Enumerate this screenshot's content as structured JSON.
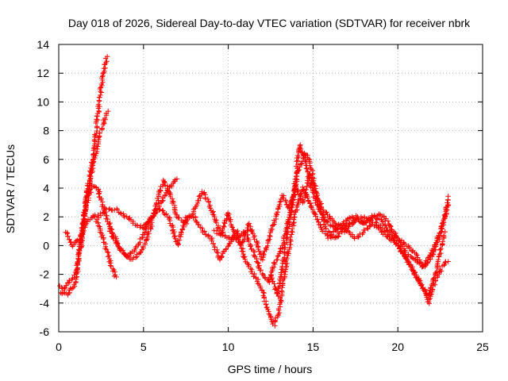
{
  "chart_data": {
    "type": "scatter",
    "title": "Day 018 of 2026, Sidereal Day-to-day VTEC variation (SDTVAR) for receiver nbrk",
    "xlabel": "GPS time / hours",
    "ylabel": "SDTVAR / TECUs",
    "xlim": [
      0,
      25
    ],
    "ylim": [
      -6,
      14
    ],
    "xticks": [
      0,
      5,
      10,
      15,
      20,
      25
    ],
    "yticks": [
      -6,
      -4,
      -2,
      0,
      2,
      4,
      6,
      8,
      10,
      12,
      14
    ],
    "grid": true,
    "marker": "+",
    "color": "#ff0000",
    "series": [
      {
        "name": "track-1",
        "points": [
          [
            0,
            -2.8
          ],
          [
            0.3,
            -3.0
          ],
          [
            0.6,
            -2.5
          ],
          [
            1.0,
            -2.0
          ],
          [
            1.3,
            0
          ],
          [
            1.5,
            2
          ],
          [
            1.7,
            4
          ],
          [
            2.0,
            6
          ],
          [
            2.2,
            8
          ],
          [
            2.4,
            10
          ],
          [
            2.6,
            12
          ],
          [
            2.85,
            13.2
          ]
        ]
      },
      {
        "name": "track-2",
        "points": [
          [
            1.3,
            0
          ],
          [
            1.6,
            3
          ],
          [
            1.9,
            5
          ],
          [
            2.2,
            6.5
          ],
          [
            2.5,
            8
          ],
          [
            2.9,
            9.5
          ]
        ]
      },
      {
        "name": "track-3",
        "points": [
          [
            0,
            -3.2
          ],
          [
            0.5,
            -3.4
          ],
          [
            1.0,
            -2.6
          ],
          [
            1.3,
            0.5
          ],
          [
            1.6,
            2.8
          ],
          [
            2.0,
            4.2
          ],
          [
            2.3,
            4.0
          ],
          [
            2.8,
            2.0
          ],
          [
            3.2,
            0.5
          ],
          [
            3.8,
            -0.5
          ],
          [
            4.3,
            -1.0
          ],
          [
            4.8,
            -0.5
          ],
          [
            5.2,
            0.5
          ],
          [
            5.6,
            2.0
          ],
          [
            5.9,
            3.5
          ],
          [
            6.2,
            4.5
          ],
          [
            6.6,
            3.5
          ],
          [
            7.0,
            2.0
          ],
          [
            7.5,
            1.5
          ],
          [
            8.0,
            2.5
          ],
          [
            8.5,
            3.8
          ],
          [
            9.0,
            2.5
          ],
          [
            9.5,
            1.0
          ],
          [
            10.0,
            0.5
          ],
          [
            10.5,
            0.5
          ],
          [
            11.0,
            1.0
          ],
          [
            11.5,
            -0.5
          ],
          [
            12.0,
            -2.0
          ],
          [
            12.4,
            -2.5
          ],
          [
            12.8,
            -1.0
          ],
          [
            13.2,
            0
          ],
          [
            13.6,
            2.0
          ],
          [
            13.9,
            4.0
          ],
          [
            14.2,
            7.0
          ],
          [
            14.5,
            6.0
          ],
          [
            14.8,
            4.5
          ],
          [
            15.2,
            3.0
          ],
          [
            15.6,
            2.0
          ],
          [
            16.0,
            1.5
          ],
          [
            16.5,
            1.0
          ],
          [
            17.0,
            1.5
          ],
          [
            17.5,
            1.8
          ],
          [
            18.0,
            1.6
          ],
          [
            18.5,
            2.0
          ],
          [
            19.0,
            1.8
          ],
          [
            19.5,
            1.0
          ],
          [
            20.0,
            0.5
          ],
          [
            20.5,
            -0.5
          ],
          [
            21.0,
            -1.0
          ],
          [
            21.5,
            -1.5
          ],
          [
            22.0,
            -0.5
          ],
          [
            22.4,
            0.5
          ],
          [
            22.8,
            2.0
          ],
          [
            23.0,
            3.5
          ]
        ]
      },
      {
        "name": "track-4",
        "points": [
          [
            0.4,
            1.0
          ],
          [
            0.8,
            0
          ],
          [
            1.2,
            0.5
          ],
          [
            1.6,
            1.5
          ],
          [
            2.1,
            2.2
          ],
          [
            2.6,
            0.5
          ],
          [
            3.0,
            -1.0
          ],
          [
            3.4,
            -2.3
          ]
        ]
      },
      {
        "name": "track-5",
        "points": [
          [
            2.3,
            2.0
          ],
          [
            2.8,
            2.5
          ],
          [
            3.4,
            2.5
          ],
          [
            4.0,
            2.0
          ],
          [
            4.5,
            1.5
          ],
          [
            5.0,
            1.2
          ],
          [
            5.5,
            2.0
          ],
          [
            6.0,
            3.0
          ],
          [
            6.5,
            4.0
          ],
          [
            7.0,
            4.8
          ]
        ]
      },
      {
        "name": "track-6",
        "points": [
          [
            3.0,
            1.5
          ],
          [
            3.5,
            0
          ],
          [
            4.0,
            -0.8
          ],
          [
            4.5,
            -0.3
          ],
          [
            5.0,
            0.8
          ],
          [
            5.5,
            2.0
          ],
          [
            6.0,
            2.5
          ],
          [
            6.5,
            2.0
          ],
          [
            7.0,
            0
          ],
          [
            7.5,
            2.0
          ],
          [
            8.0,
            2.0
          ],
          [
            8.5,
            1.0
          ],
          [
            9.0,
            0.5
          ],
          [
            9.5,
            -1.0
          ],
          [
            10.0,
            0
          ],
          [
            10.5,
            1.0
          ],
          [
            11.0,
            -1.0
          ],
          [
            11.5,
            -2.0
          ],
          [
            12.0,
            -3.0
          ],
          [
            12.3,
            -4.5
          ],
          [
            12.7,
            -5.5
          ],
          [
            13.0,
            -4.5
          ],
          [
            13.3,
            -2.0
          ],
          [
            13.6,
            0
          ],
          [
            14.0,
            2.5
          ],
          [
            14.4,
            4.0
          ],
          [
            14.8,
            3.0
          ],
          [
            15.2,
            2.0
          ],
          [
            15.6,
            1.0
          ],
          [
            16.0,
            0.5
          ],
          [
            16.5,
            1.5
          ],
          [
            17.0,
            1.0
          ],
          [
            17.5,
            0.5
          ],
          [
            18.0,
            1.0
          ],
          [
            18.5,
            1.5
          ],
          [
            19.0,
            1.0
          ],
          [
            19.5,
            0.5
          ],
          [
            20.0,
            0
          ],
          [
            20.5,
            -1.0
          ],
          [
            21.0,
            -2.0
          ],
          [
            21.5,
            -3.0
          ],
          [
            21.8,
            -4.0
          ],
          [
            22.2,
            -2.5
          ],
          [
            22.6,
            -1.5
          ],
          [
            23.0,
            -1.0
          ]
        ]
      },
      {
        "name": "track-7",
        "points": [
          [
            9.2,
            1.0
          ],
          [
            9.6,
            0.8
          ],
          [
            10.0,
            2.3
          ],
          [
            10.4,
            0.5
          ],
          [
            10.8,
            0
          ],
          [
            11.2,
            1.5
          ],
          [
            11.6,
            0.5
          ],
          [
            12.0,
            -1.0
          ],
          [
            12.4,
            0.5
          ],
          [
            12.8,
            2.0
          ],
          [
            13.2,
            3.5
          ],
          [
            13.6,
            2.5
          ],
          [
            14.0,
            4.0
          ],
          [
            14.4,
            3.0
          ],
          [
            14.8,
            5.0
          ],
          [
            15.2,
            3.5
          ],
          [
            15.6,
            2.5
          ],
          [
            16.0,
            2.0
          ],
          [
            16.5,
            1.2
          ],
          [
            17.0,
            1.8
          ],
          [
            17.5,
            2.0
          ],
          [
            18.0,
            1.5
          ],
          [
            18.5,
            2.0
          ],
          [
            19.0,
            2.2
          ],
          [
            19.5,
            1.5
          ],
          [
            20.0,
            0.5
          ],
          [
            20.5,
            0
          ],
          [
            21.0,
            -0.5
          ],
          [
            21.5,
            -1.5
          ],
          [
            22.0,
            -0.8
          ],
          [
            22.5,
            1.0
          ],
          [
            23.0,
            3.0
          ]
        ]
      },
      {
        "name": "track-8",
        "points": [
          [
            12.5,
            -2.0
          ],
          [
            12.9,
            -3.5
          ],
          [
            13.2,
            -1.5
          ],
          [
            13.5,
            1.0
          ],
          [
            13.8,
            3.0
          ],
          [
            14.1,
            5.0
          ],
          [
            14.5,
            6.5
          ],
          [
            14.9,
            5.5
          ],
          [
            15.3,
            3.0
          ],
          [
            15.8,
            1.0
          ],
          [
            16.3,
            0.5
          ],
          [
            16.8,
            1.0
          ],
          [
            17.3,
            1.5
          ],
          [
            17.8,
            2.0
          ],
          [
            18.3,
            1.8
          ],
          [
            18.8,
            1.5
          ],
          [
            19.3,
            1.0
          ],
          [
            19.8,
            0.3
          ],
          [
            20.3,
            -0.5
          ],
          [
            20.8,
            -1.5
          ],
          [
            21.3,
            -2.5
          ],
          [
            21.8,
            -3.5
          ],
          [
            22.3,
            -1.5
          ],
          [
            22.8,
            1.0
          ]
        ]
      }
    ]
  }
}
